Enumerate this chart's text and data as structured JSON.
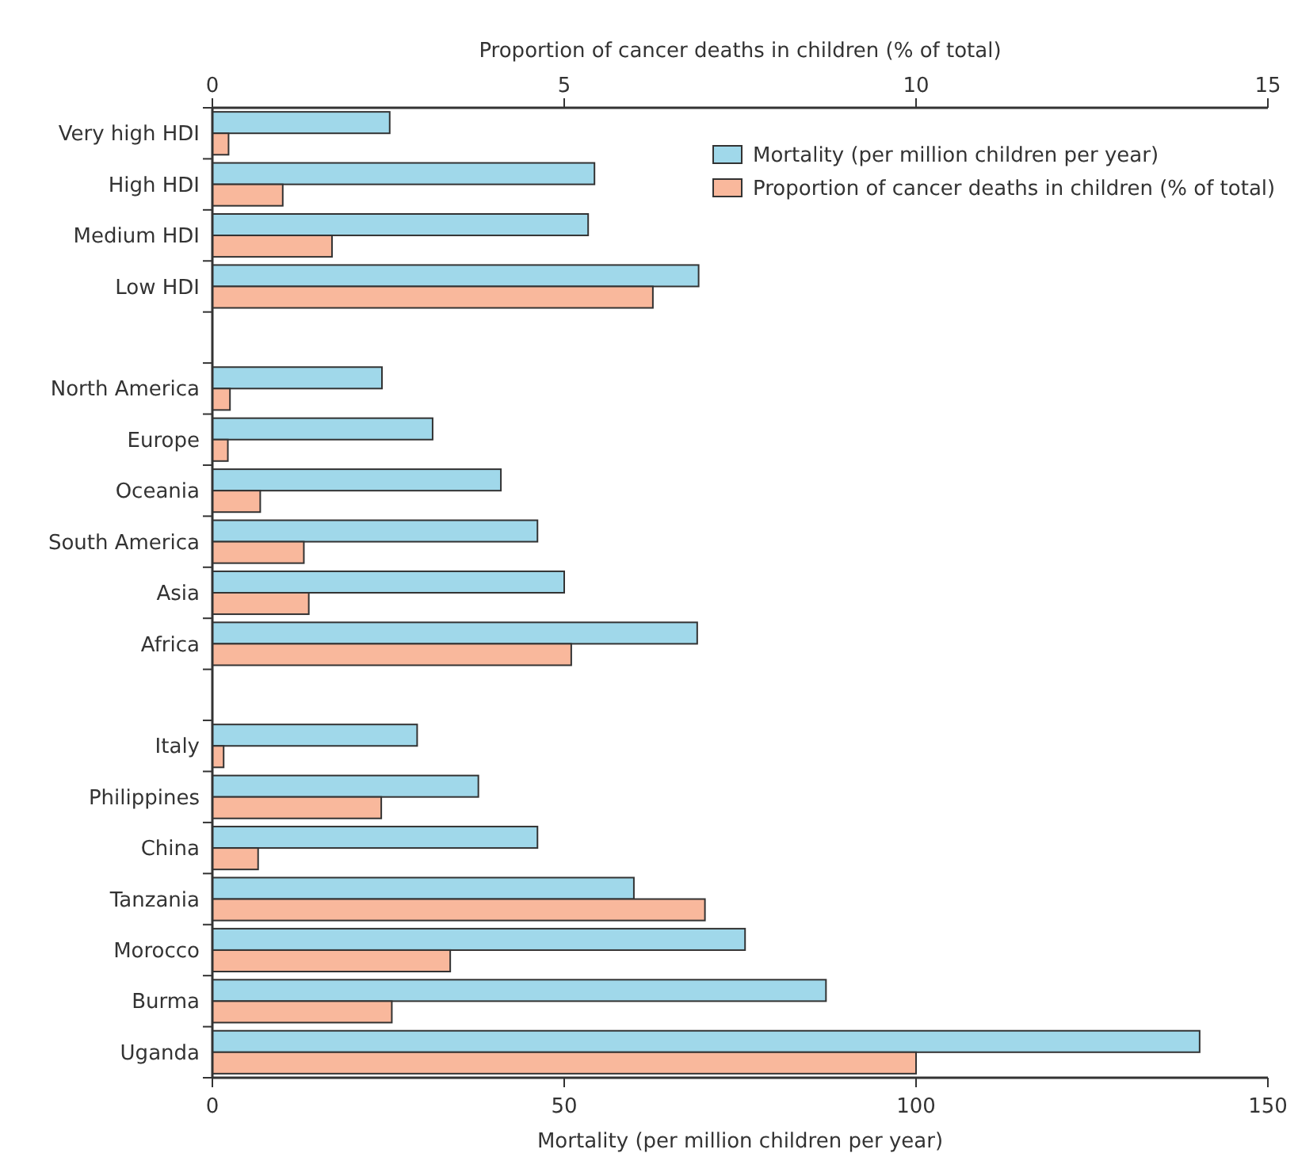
{
  "chart_data": {
    "type": "bar",
    "orientation": "horizontal",
    "xlabel": "Mortality (per million children per year)",
    "x2label": "Proportion of cancer deaths in children (% of total)",
    "categories": [
      "Very high HDI",
      "High HDI",
      "Medium HDI",
      "Low HDI",
      null,
      "North America",
      "Europe",
      "Oceania",
      "South America",
      "Asia",
      "Africa",
      null,
      "Italy",
      "Philippines",
      "China",
      "Tanzania",
      "Morocco",
      "Burma",
      "Uganda"
    ],
    "series": [
      {
        "name": "Mortality (per million children per year)",
        "color": "#a0d8ea",
        "values": [
          25.2,
          54.3,
          53.4,
          69.1,
          null,
          24.1,
          31.3,
          41.0,
          46.2,
          50.0,
          68.9,
          null,
          29.1,
          37.8,
          46.2,
          59.9,
          75.7,
          87.2,
          140.3
        ]
      },
      {
        "name": "Proportion of cancer deaths in children (% of total)",
        "color": "#f9b89c",
        "axis": "x2",
        "values": [
          0.23,
          1.0,
          1.7,
          6.26,
          null,
          0.25,
          0.22,
          0.68,
          1.3,
          1.37,
          5.1,
          null,
          0.16,
          2.4,
          0.65,
          7.0,
          3.38,
          2.55,
          10.0
        ]
      }
    ],
    "xlim": [
      0,
      150
    ],
    "xticks": [
      0,
      50,
      100,
      150
    ],
    "x2lim": [
      0,
      15
    ],
    "x2ticks": [
      0,
      5,
      10,
      15
    ],
    "legend": "top right",
    "grid": false
  }
}
